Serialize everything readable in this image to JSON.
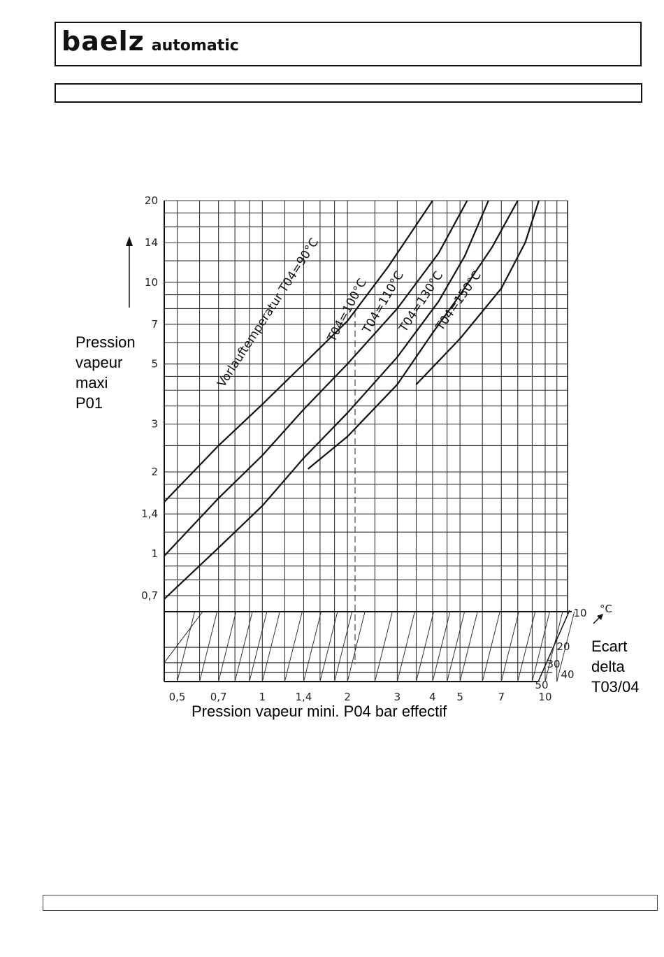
{
  "header": {
    "brand_main": "baelz",
    "brand_sub": "automatic"
  },
  "chart_data": {
    "type": "line",
    "x_scale": "log",
    "y_scale": "log",
    "xlim": [
      0.45,
      12
    ],
    "ylim": [
      0.6,
      20
    ],
    "x_ticks": [
      "0,5",
      "0,7",
      "1",
      "1,4",
      "2",
      "3",
      "4",
      "5",
      "7",
      "10"
    ],
    "x_tick_values": [
      0.5,
      0.7,
      1,
      1.4,
      2,
      3,
      4,
      5,
      7,
      10
    ],
    "y_ticks": [
      "20",
      "14",
      "10",
      "7",
      "5",
      "3",
      "2",
      "1,4",
      "1",
      "0,7"
    ],
    "y_tick_values": [
      20,
      14,
      10,
      7,
      5,
      3,
      2,
      1.4,
      1,
      0.7
    ],
    "ylabel_lines": [
      "Pression",
      "vapeur",
      "maxi",
      "P01"
    ],
    "xlabel": "Pression vapeur mini. P04 bar effectif",
    "delta_axis": {
      "unit": "°C",
      "ticks": [
        "10",
        "20",
        "30",
        "40",
        "50"
      ],
      "label_lines": [
        "Ecart",
        "delta",
        "T03/04"
      ]
    },
    "series": [
      {
        "name": "Vorlauftemperatur T04=90°C",
        "x": [
          0.45,
          0.7,
          1.0,
          1.4,
          2.0,
          2.8,
          4.0
        ],
        "y": [
          1.55,
          2.5,
          3.55,
          5.0,
          7.2,
          11.5,
          20
        ]
      },
      {
        "name": "T04=100°C",
        "x": [
          0.45,
          0.7,
          1.0,
          1.4,
          2.0,
          3.0,
          4.2,
          5.3
        ],
        "y": [
          0.98,
          1.6,
          2.3,
          3.4,
          5.0,
          8.0,
          12.8,
          20
        ]
      },
      {
        "name": "T04=110°C",
        "x": [
          0.45,
          0.7,
          1.0,
          1.4,
          2.0,
          3.0,
          4.2,
          5.2,
          6.3
        ],
        "y": [
          0.68,
          1.05,
          1.5,
          2.25,
          3.3,
          5.3,
          8.5,
          12.5,
          20
        ]
      },
      {
        "name": "T04=130°C",
        "x": [
          1.45,
          2.0,
          3.0,
          4.0,
          5.0,
          6.5,
          8.0
        ],
        "y": [
          2.05,
          2.7,
          4.2,
          6.5,
          9.0,
          13.5,
          20
        ]
      },
      {
        "name": "T04=150°C",
        "x": [
          3.5,
          5.0,
          7.0,
          8.5,
          9.5
        ],
        "y": [
          4.2,
          6.2,
          9.5,
          14.0,
          20
        ]
      }
    ]
  }
}
